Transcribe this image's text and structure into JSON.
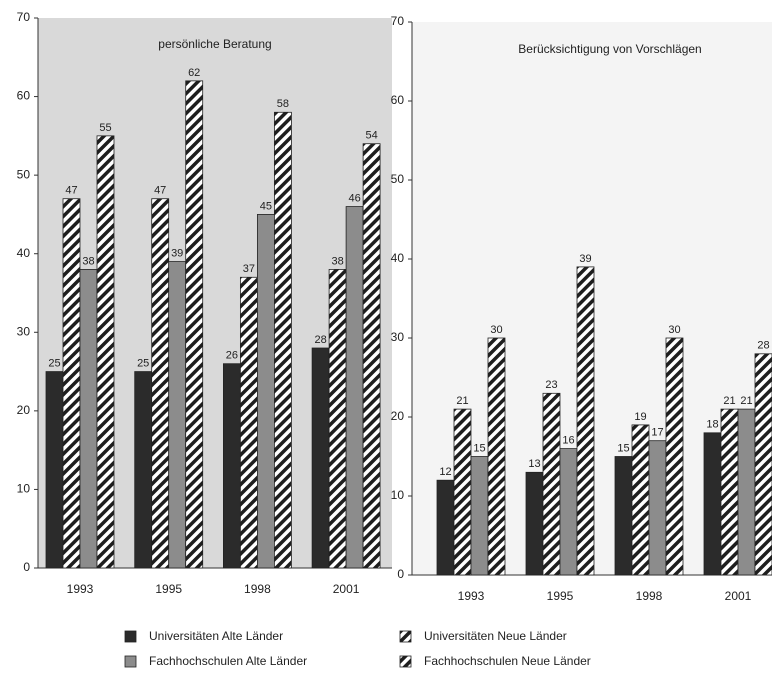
{
  "chart_data": [
    {
      "type": "bar",
      "title": "persönliche Beratung",
      "categories": [
        "1993",
        "1995",
        "1998",
        "2001"
      ],
      "ylim": [
        0,
        70
      ],
      "yticks": [
        0,
        10,
        20,
        30,
        40,
        50,
        60,
        70
      ],
      "background": "#d9d9d9",
      "legend": "bottom",
      "series": [
        {
          "name": "Universitäten Alte Länder",
          "color": "#2b2b2b",
          "hatch": false,
          "values": [
            25,
            25,
            26,
            28
          ]
        },
        {
          "name": "Universitäten Neue Länder",
          "color": "#1e1e1e",
          "hatch": true,
          "values": [
            47,
            47,
            37,
            38
          ]
        },
        {
          "name": "Fachhochschulen Alte Länder",
          "color": "#8c8c8c",
          "hatch": false,
          "values": [
            38,
            39,
            45,
            46
          ]
        },
        {
          "name": "Fachhochschulen Neue Länder",
          "color": "#1e1e1e",
          "hatch": true,
          "values": [
            55,
            62,
            58,
            54
          ]
        }
      ]
    },
    {
      "type": "bar",
      "title": "Berücksichtigung von Vorschlägen",
      "categories": [
        "1993",
        "1995",
        "1998",
        "2001"
      ],
      "ylim": [
        0,
        70
      ],
      "yticks": [
        0,
        10,
        20,
        30,
        40,
        50,
        60,
        70
      ],
      "background": "#f4f4f4",
      "series": [
        {
          "color": "#2b2b2b",
          "hatch": false,
          "values": [
            12,
            13,
            15,
            18
          ]
        },
        {
          "color": "#1e1e1e",
          "hatch": true,
          "values": [
            21,
            23,
            19,
            21
          ]
        },
        {
          "color": "#8c8c8c",
          "hatch": false,
          "values": [
            15,
            16,
            17,
            21
          ]
        },
        {
          "color": "#1e1e1e",
          "hatch": true,
          "values": [
            30,
            39,
            30,
            28
          ]
        }
      ]
    }
  ]
}
